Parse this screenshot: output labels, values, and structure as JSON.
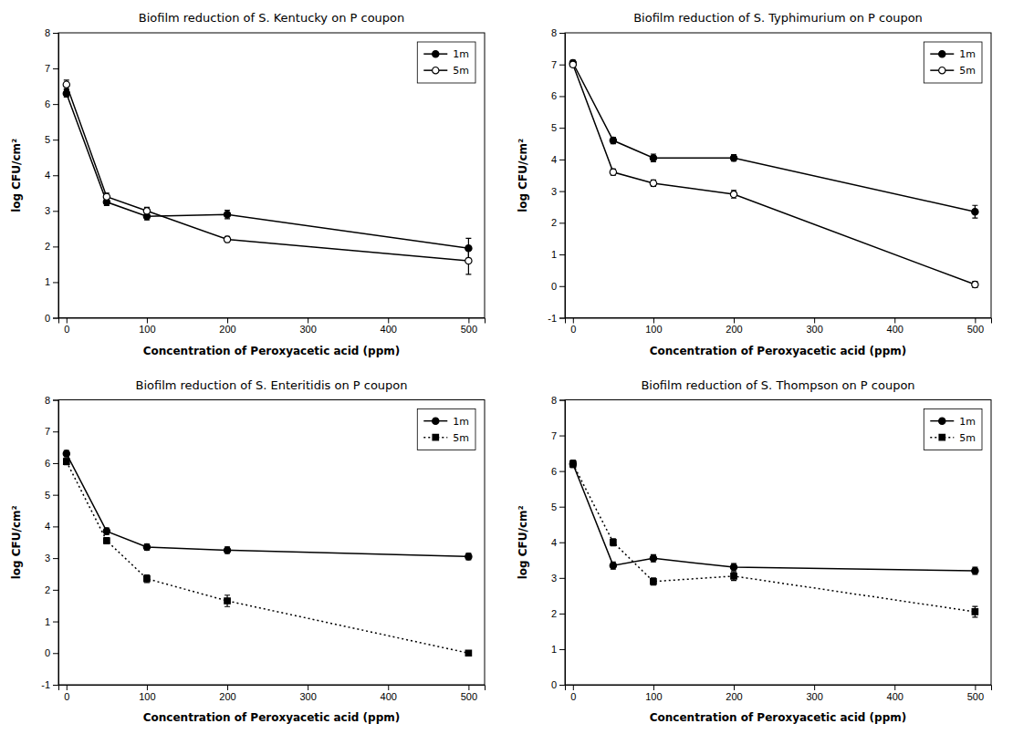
{
  "chart_data": [
    {
      "type": "line",
      "title": "Biofilm reduction of S. Kentucky on P coupon",
      "x_label": "Concentration of Peroxyacetic acid (ppm)",
      "y_label": "log CFU/cm²",
      "x": [
        0,
        50,
        100,
        200,
        500
      ],
      "series": [
        {
          "name": "1m",
          "color": "#000000",
          "marker": "circle",
          "line_style": "solid",
          "values": [
            6.3,
            3.25,
            2.85,
            2.9,
            1.95
          ],
          "errors": [
            0.1,
            0.1,
            0.1,
            0.12,
            0.28
          ]
        },
        {
          "name": "5m",
          "color": "#000000",
          "marker": "circle-open",
          "line_style": "solid",
          "values": [
            6.55,
            3.4,
            3.0,
            2.2,
            1.6
          ],
          "errors": [
            0.12,
            0.1,
            0.1,
            0.08,
            0.38
          ]
        }
      ],
      "xlim": [
        -10,
        520
      ],
      "xticks": [
        0,
        100,
        200,
        300,
        400,
        500
      ],
      "ylim": [
        0,
        8
      ],
      "yticks": [
        0,
        1,
        2,
        3,
        4,
        5,
        6,
        7,
        8
      ],
      "grid": false,
      "legend": "upper right"
    },
    {
      "type": "line",
      "title": "Biofilm reduction of S. Typhimurium on P coupon",
      "x_label": "Concentration of Peroxyacetic acid (ppm)",
      "y_label": "log CFU/cm²",
      "x": [
        0,
        50,
        100,
        200,
        500
      ],
      "series": [
        {
          "name": "1m",
          "color": "#000000",
          "marker": "circle",
          "line_style": "solid",
          "values": [
            7.05,
            4.6,
            4.05,
            4.05,
            2.35
          ],
          "errors": [
            0.08,
            0.1,
            0.12,
            0.1,
            0.2
          ]
        },
        {
          "name": "5m",
          "color": "#000000",
          "marker": "circle-open",
          "line_style": "solid",
          "values": [
            7.0,
            3.6,
            3.25,
            2.9,
            0.05
          ],
          "errors": [
            0.08,
            0.1,
            0.1,
            0.12,
            0.1
          ]
        }
      ],
      "xlim": [
        -10,
        520
      ],
      "xticks": [
        0,
        100,
        200,
        300,
        400,
        500
      ],
      "ylim": [
        -1,
        8
      ],
      "yticks": [
        -1,
        0,
        1,
        2,
        3,
        4,
        5,
        6,
        7,
        8
      ],
      "grid": false,
      "legend": "upper right"
    },
    {
      "type": "line",
      "title": "Biofilm reduction of S. Enteritidis on P coupon",
      "x_label": "Concentration of Peroxyacetic acid (ppm)",
      "y_label": "log CFU/cm²",
      "x": [
        0,
        50,
        100,
        200,
        500
      ],
      "series": [
        {
          "name": "1m",
          "color": "#000000",
          "marker": "circle",
          "line_style": "solid",
          "values": [
            6.3,
            3.85,
            3.35,
            3.25,
            3.05
          ],
          "errors": [
            0.1,
            0.1,
            0.1,
            0.1,
            0.1
          ]
        },
        {
          "name": "5m",
          "color": "#000000",
          "marker": "square",
          "line_style": "dotted",
          "values": [
            6.05,
            3.55,
            2.35,
            1.65,
            0.0
          ],
          "errors": [
            0.1,
            0.1,
            0.12,
            0.18,
            0.05
          ]
        }
      ],
      "xlim": [
        -10,
        520
      ],
      "xticks": [
        0,
        100,
        200,
        300,
        400,
        500
      ],
      "ylim": [
        -1,
        8
      ],
      "yticks": [
        -1,
        0,
        1,
        2,
        3,
        4,
        5,
        6,
        7,
        8
      ],
      "grid": false,
      "legend": "upper right"
    },
    {
      "type": "line",
      "title": "Biofilm reduction of S. Thompson on P coupon",
      "x_label": "Concentration of Peroxyacetic acid (ppm)",
      "y_label": "log CFU/cm²",
      "x": [
        0,
        50,
        100,
        200,
        500
      ],
      "series": [
        {
          "name": "1m",
          "color": "#000000",
          "marker": "circle",
          "line_style": "solid",
          "values": [
            6.2,
            3.35,
            3.55,
            3.3,
            3.2
          ],
          "errors": [
            0.1,
            0.1,
            0.1,
            0.1,
            0.1
          ]
        },
        {
          "name": "5m",
          "color": "#000000",
          "marker": "square",
          "line_style": "dotted",
          "values": [
            6.2,
            4.0,
            2.9,
            3.05,
            2.05
          ],
          "errors": [
            0.1,
            0.1,
            0.1,
            0.12,
            0.15
          ]
        }
      ],
      "xlim": [
        -10,
        520
      ],
      "xticks": [
        0,
        100,
        200,
        300,
        400,
        500
      ],
      "ylim": [
        0,
        8
      ],
      "yticks": [
        0,
        1,
        2,
        3,
        4,
        5,
        6,
        7,
        8
      ],
      "grid": false,
      "legend": "upper right"
    }
  ]
}
